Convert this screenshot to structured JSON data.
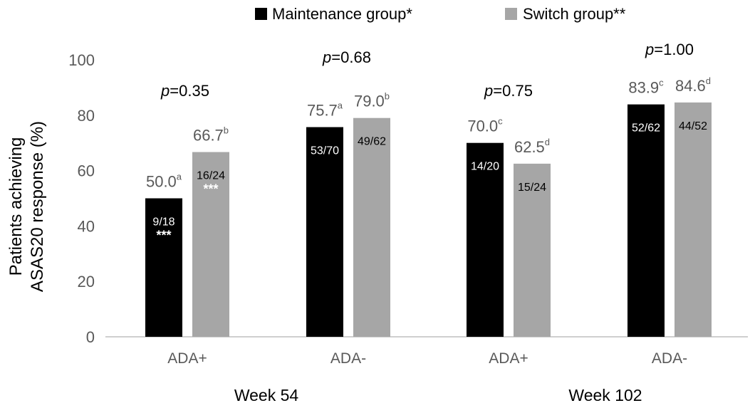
{
  "chart_data": {
    "type": "bar",
    "legend": [
      {
        "name": "Maintenance group*",
        "color": "#000000"
      },
      {
        "name": "Switch group**",
        "color": "#a6a6a6"
      }
    ],
    "ylabel_lines": [
      "Patients achieving",
      "ASAS20 response (%)"
    ],
    "ylim": [
      0,
      100
    ],
    "yticks": [
      "0",
      "20",
      "40",
      "60",
      "80",
      "100"
    ],
    "ytick_values": [
      0,
      20,
      40,
      60,
      80,
      100
    ],
    "categories": [
      "ADA+",
      "ADA-",
      "ADA+",
      "ADA-"
    ],
    "groups": [
      {
        "label": "Week 54",
        "categories": [
          0,
          1
        ]
      },
      {
        "label": "Week 102",
        "categories": [
          2,
          3
        ]
      }
    ],
    "p_values": [
      {
        "prefix": "p",
        "text": "=0.35"
      },
      {
        "prefix": "p",
        "text": "=0.68"
      },
      {
        "prefix": "p",
        "text": "=0.75"
      },
      {
        "prefix": "p",
        "text": "=1.00"
      }
    ],
    "series": [
      {
        "name": "Maintenance group*",
        "color": "#000000",
        "text_color": "#ffffff",
        "values": [
          50.0,
          75.7,
          70.0,
          83.9
        ],
        "value_labels": [
          "50.0",
          "75.7",
          "70.0",
          "83.9"
        ],
        "superscripts": [
          "a",
          "a",
          "c",
          "c"
        ],
        "counts": [
          "9/18",
          "53/70",
          "14/20",
          "52/62"
        ],
        "stars": [
          "***",
          "",
          "",
          ""
        ]
      },
      {
        "name": "Switch group**",
        "color": "#a6a6a6",
        "text_color": "#000000",
        "values": [
          66.7,
          79.0,
          62.5,
          84.6
        ],
        "value_labels": [
          "66.7",
          "79.0",
          "62.5",
          "84.6"
        ],
        "superscripts": [
          "b",
          "b",
          "d",
          "d"
        ],
        "counts": [
          "16/24",
          "49/62",
          "15/24",
          "44/52"
        ],
        "stars": [
          "***",
          "",
          "",
          ""
        ]
      }
    ]
  }
}
